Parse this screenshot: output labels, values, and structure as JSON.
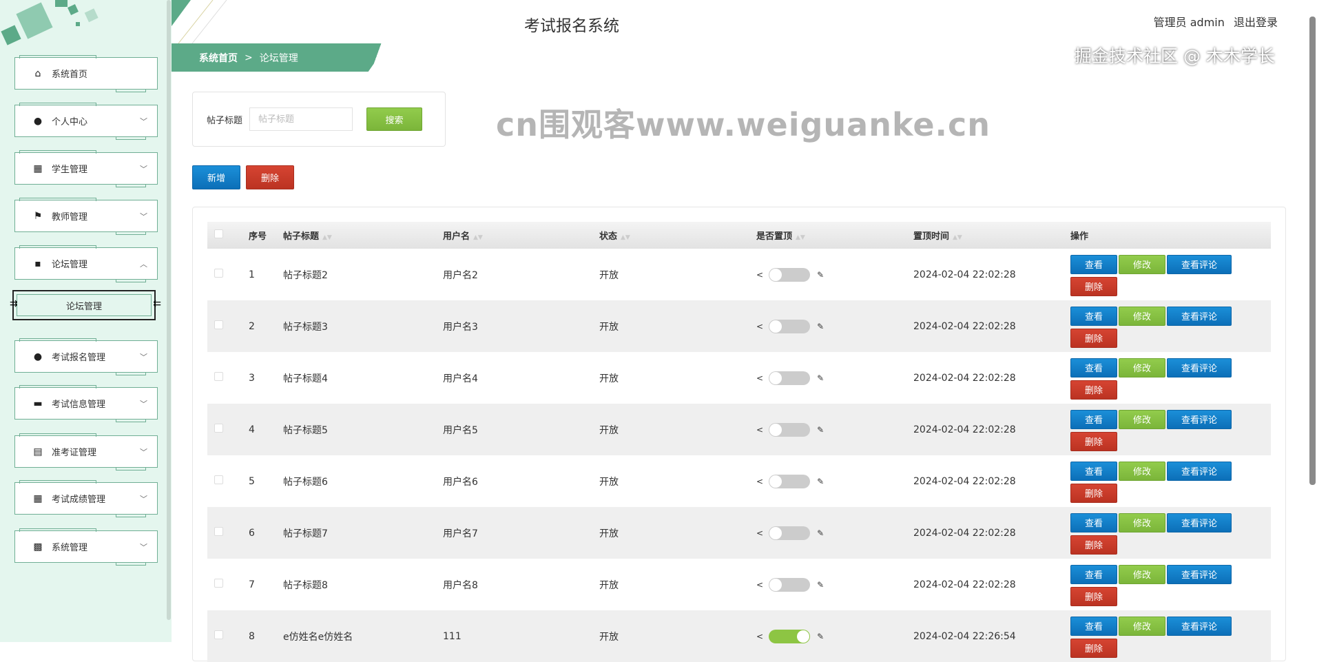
{
  "header": {
    "title": "考试报名系统",
    "user": "管理员 admin",
    "logout": "退出登录"
  },
  "breadcrumb": {
    "home": "系统首页",
    "sep": ">",
    "current": "论坛管理"
  },
  "sidebar": {
    "items": [
      {
        "label": "系统首页",
        "icon": "home-icon",
        "glyph": "⌂",
        "chev": ""
      },
      {
        "label": "个人中心",
        "icon": "user-icon",
        "glyph": "●",
        "chev": "﹀"
      },
      {
        "label": "学生管理",
        "icon": "grid-icon",
        "glyph": "▦",
        "chev": "﹀"
      },
      {
        "label": "教师管理",
        "icon": "flag-icon",
        "glyph": "⚑",
        "chev": "﹀"
      },
      {
        "label": "论坛管理",
        "icon": "comment-icon",
        "glyph": "▪",
        "chev": "︿"
      },
      {
        "label": "考试报名管理",
        "icon": "user-icon",
        "glyph": "●",
        "chev": "﹀"
      },
      {
        "label": "考试信息管理",
        "icon": "briefcase-icon",
        "glyph": "▬",
        "chev": "﹀"
      },
      {
        "label": "准考证管理",
        "icon": "clipboard-icon",
        "glyph": "▤",
        "chev": "﹀"
      },
      {
        "label": "考试成绩管理",
        "icon": "grid-icon",
        "glyph": "▦",
        "chev": "﹀"
      },
      {
        "label": "系统管理",
        "icon": "apps-icon",
        "glyph": "▩",
        "chev": "﹀"
      }
    ],
    "submenu": "论坛管理"
  },
  "search": {
    "label": "帖子标题",
    "placeholder": "帖子标题",
    "button": "搜索"
  },
  "toolbar": {
    "add": "新增",
    "delete": "删除"
  },
  "table": {
    "columns": [
      "序号",
      "帖子标题",
      "用户名",
      "状态",
      "是否置顶",
      "置顶时间",
      "操作"
    ],
    "actions": {
      "view": "查看",
      "edit": "修改",
      "comments": "查看评论",
      "delete": "删除"
    },
    "rows": [
      {
        "no": "1",
        "title": "帖子标题2",
        "user": "用户名2",
        "status": "开放",
        "pinned": false,
        "time": "2024-02-04 22:02:28"
      },
      {
        "no": "2",
        "title": "帖子标题3",
        "user": "用户名3",
        "status": "开放",
        "pinned": false,
        "time": "2024-02-04 22:02:28"
      },
      {
        "no": "3",
        "title": "帖子标题4",
        "user": "用户名4",
        "status": "开放",
        "pinned": false,
        "time": "2024-02-04 22:02:28"
      },
      {
        "no": "4",
        "title": "帖子标题5",
        "user": "用户名5",
        "status": "开放",
        "pinned": false,
        "time": "2024-02-04 22:02:28"
      },
      {
        "no": "5",
        "title": "帖子标题6",
        "user": "用户名6",
        "status": "开放",
        "pinned": false,
        "time": "2024-02-04 22:02:28"
      },
      {
        "no": "6",
        "title": "帖子标题7",
        "user": "用户名7",
        "status": "开放",
        "pinned": false,
        "time": "2024-02-04 22:02:28"
      },
      {
        "no": "7",
        "title": "帖子标题8",
        "user": "用户名8",
        "status": "开放",
        "pinned": false,
        "time": "2024-02-04 22:02:28"
      },
      {
        "no": "8",
        "title": "e仿姓名e仿姓名",
        "user": "111",
        "status": "开放",
        "pinned": true,
        "time": "2024-02-04 22:26:54"
      }
    ]
  },
  "watermarks": {
    "center": "cn围观客www.weiguanke.cn",
    "corner": "掘金技术社区 @ 木木学长"
  },
  "colors": {
    "accent": "#5caa88",
    "blue": "#1b8fd8",
    "green": "#8dc543",
    "red": "#c8392a",
    "sidebar_bg": "#e4f6ee"
  }
}
